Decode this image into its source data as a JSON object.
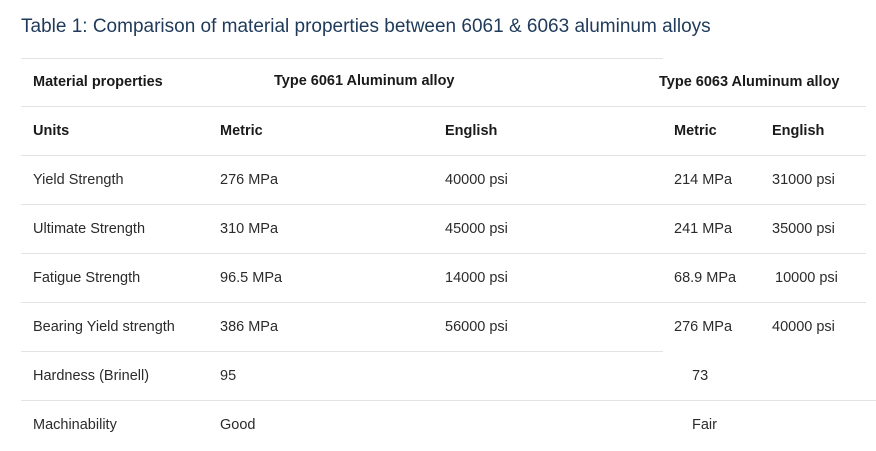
{
  "table": {
    "title": "Table 1: Comparison of material properties between 6061 & 6063 aluminum alloys",
    "header": {
      "material_properties": "Material properties",
      "type_6061": "Type 6061 Aluminum alloy",
      "type_6063": "Type 6063 Aluminum alloy"
    },
    "units_row": {
      "label": "Units",
      "metric_6061": "Metric",
      "english_6061": "English",
      "metric_6063": "Metric",
      "english_6063": "English"
    },
    "rows": [
      {
        "property": "Yield Strength",
        "metric_6061": "276 MPa",
        "english_6061": "40000 psi",
        "metric_6063": "214 MPa",
        "english_6063": "31000 psi"
      },
      {
        "property": "Ultimate Strength",
        "metric_6061": "310 MPa",
        "english_6061": "45000 psi",
        "metric_6063": "241 MPa",
        "english_6063": "35000 psi"
      },
      {
        "property": "Fatigue Strength",
        "metric_6061": "96.5 MPa",
        "english_6061": "14000 psi",
        "metric_6063": "68.9 MPa",
        "english_6063": "10000 psi"
      },
      {
        "property": "Bearing Yield strength",
        "metric_6061": "386 MPa",
        "english_6061": "56000 psi",
        "metric_6063": "276 MPa",
        "english_6063": "40000 psi"
      },
      {
        "property": "Hardness (Brinell)",
        "metric_6061": "95",
        "metric_6063": "73"
      },
      {
        "property": "Machinability",
        "metric_6061": "Good",
        "metric_6063": "Fair"
      }
    ]
  }
}
